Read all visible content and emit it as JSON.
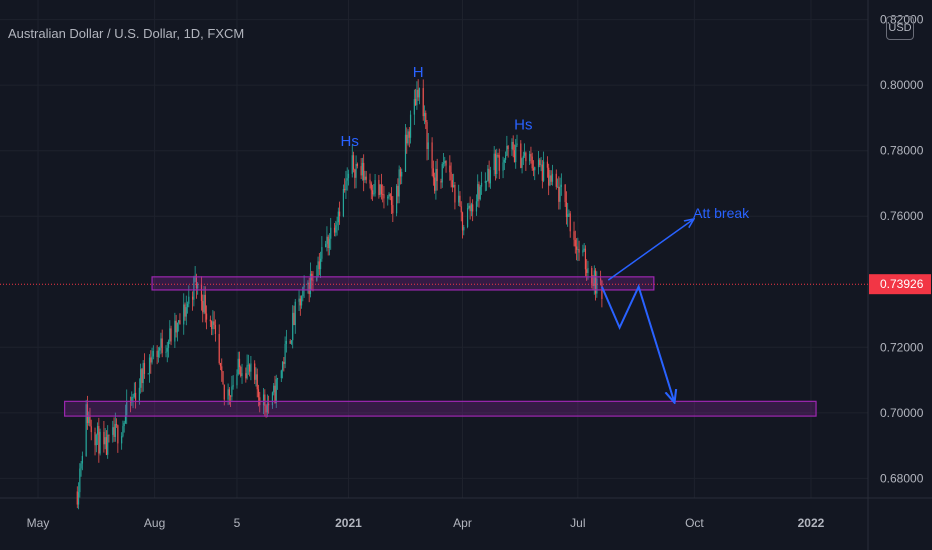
{
  "chart_data": {
    "type": "candlestick",
    "title": "Australian Dollar / U.S. Dollar, 1D, FXCM",
    "currency": "USD",
    "y_ticks": [
      "0.82000",
      "0.80000",
      "0.78000",
      "0.76000",
      "0.72000",
      "0.70000",
      "0.68000"
    ],
    "y_tick_values": [
      0.82,
      0.8,
      0.78,
      0.76,
      0.72,
      0.7,
      0.68
    ],
    "ylim": [
      0.674,
      0.826
    ],
    "x_ticks": [
      "May",
      "Aug",
      "5",
      "2021",
      "Apr",
      "Jul",
      "Oct",
      "2022"
    ],
    "x_tick_dates": [
      "2020-05-01",
      "2020-08-01",
      "2020-10-05",
      "2021-01-01",
      "2021-04-01",
      "2021-07-01",
      "2021-10-01",
      "2022-01-01"
    ],
    "xlim": [
      "2020-04-01",
      "2022-02-15"
    ],
    "last_price": "0.73926",
    "last_price_value": 0.73926,
    "colors": {
      "background": "#131722",
      "up": "#26a69a",
      "down": "#ef5350",
      "annotation": "#2962ff",
      "zone": "#9c27b0",
      "price_label": "#f23645"
    },
    "anchors": [
      [
        "2020-06-01",
        0.676
      ],
      [
        "2020-06-08",
        0.7
      ],
      [
        "2020-06-22",
        0.688
      ],
      [
        "2020-07-06",
        0.696
      ],
      [
        "2020-07-27",
        0.716
      ],
      [
        "2020-08-20",
        0.726
      ],
      [
        "2020-09-02",
        0.74
      ],
      [
        "2020-09-15",
        0.728
      ],
      [
        "2020-09-25",
        0.704
      ],
      [
        "2020-10-10",
        0.716
      ],
      [
        "2020-10-25",
        0.704
      ],
      [
        "2020-11-01",
        0.702
      ],
      [
        "2020-11-20",
        0.73
      ],
      [
        "2020-12-15",
        0.752
      ],
      [
        "2021-01-05",
        0.776
      ],
      [
        "2021-01-20",
        0.77
      ],
      [
        "2021-02-05",
        0.762
      ],
      [
        "2021-02-25",
        0.8
      ],
      [
        "2021-03-10",
        0.77
      ],
      [
        "2021-03-20",
        0.776
      ],
      [
        "2021-04-01",
        0.758
      ],
      [
        "2021-04-25",
        0.776
      ],
      [
        "2021-05-10",
        0.78
      ],
      [
        "2021-05-31",
        0.775
      ],
      [
        "2021-06-20",
        0.765
      ],
      [
        "2021-07-01",
        0.75
      ],
      [
        "2021-07-15",
        0.74
      ],
      [
        "2021-07-20",
        0.736
      ]
    ],
    "zones": [
      {
        "from": "2020-07-30",
        "to": "2021-08-30",
        "low": 0.7375,
        "high": 0.7415
      },
      {
        "from": "2020-05-22",
        "to": "2022-01-05",
        "low": 0.699,
        "high": 0.7035
      }
    ],
    "annotations": [
      {
        "text": "H",
        "date": "2021-02-25",
        "price": 0.8025
      },
      {
        "text": "Hs",
        "date": "2021-01-02",
        "price": 0.7815
      },
      {
        "text": "Hs",
        "date": "2021-05-19",
        "price": 0.7865
      },
      {
        "text": "Att break",
        "date": "2021-09-30",
        "price": 0.7595
      }
    ],
    "break_arrow": {
      "from": [
        "2021-07-25",
        0.7405
      ],
      "to": [
        "2021-09-30",
        0.759
      ]
    },
    "projection_path": [
      [
        "2021-07-20",
        0.7385
      ],
      [
        "2021-08-03",
        0.726
      ],
      [
        "2021-08-18",
        0.7385
      ],
      [
        "2021-09-15",
        0.7035
      ]
    ]
  }
}
